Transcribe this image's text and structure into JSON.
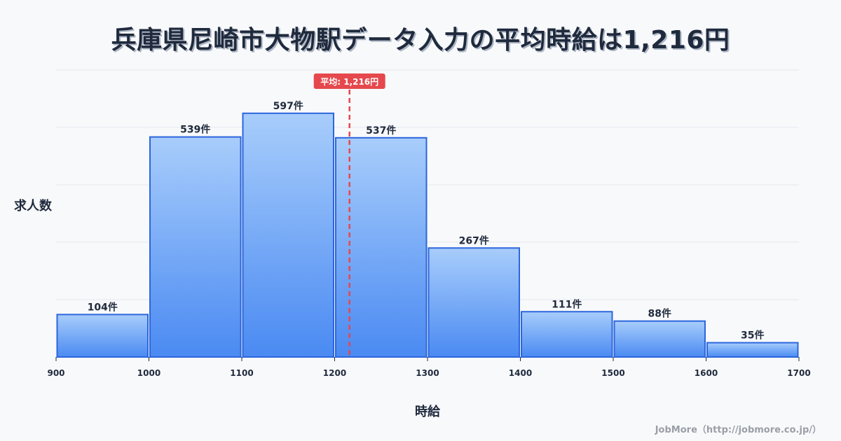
{
  "title": "兵庫県尼崎市大物駅データ入力の平均時給は1,216円",
  "credit": "JobMore（http://jobmore.co.jp/）",
  "colors": {
    "bar_top": "#a8cdfb",
    "bar_bottom": "#4a8af2",
    "bar_stroke": "#2c66dd",
    "mean_line": "#e5484d",
    "grid": "#e3e6ee",
    "text": "#1f2a3d"
  },
  "chart_data": {
    "type": "bar",
    "title": "兵庫県尼崎市大物駅データ入力の平均時給は1,216円",
    "xlabel": "時給",
    "ylabel": "求人数",
    "bins": [
      {
        "from": 900,
        "to": 1000,
        "count": 104,
        "label": "104件"
      },
      {
        "from": 1000,
        "to": 1100,
        "count": 539,
        "label": "539件"
      },
      {
        "from": 1100,
        "to": 1200,
        "count": 597,
        "label": "597件"
      },
      {
        "from": 1200,
        "to": 1300,
        "count": 537,
        "label": "537件"
      },
      {
        "from": 1300,
        "to": 1400,
        "count": 267,
        "label": "267件"
      },
      {
        "from": 1400,
        "to": 1500,
        "count": 111,
        "label": "111件"
      },
      {
        "from": 1500,
        "to": 1600,
        "count": 88,
        "label": "88件"
      },
      {
        "from": 1600,
        "to": 1700,
        "count": 35,
        "label": "35件"
      }
    ],
    "x_ticks": [
      "900",
      "1000",
      "1100",
      "1200",
      "1300",
      "1400",
      "1500",
      "1600",
      "1700"
    ],
    "xlim": [
      900,
      1700
    ],
    "ylim": [
      0,
      703
    ],
    "grid": true,
    "mean": {
      "value": 1216,
      "label": "平均: 1,216円"
    }
  }
}
